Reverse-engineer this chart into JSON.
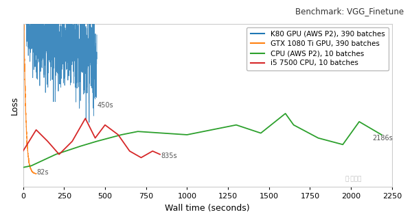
{
  "title": "Benchmark: VGG_Finetune",
  "xlabel": "Wall time (seconds)",
  "ylabel": "Loss",
  "background_color": "#ffffff",
  "legend_entries": [
    "K80 GPU (AWS P2), 390 batches",
    "GTX 1080 Ti GPU, 390 batches",
    "CPU (AWS P2), 10 batches",
    "i5 7500 CPU, 10 batches"
  ],
  "line_colors": {
    "k80": "#1f77b4",
    "gtx": "#ff7f0e",
    "cpu_aws": "#2ca02c",
    "i5": "#d62728"
  },
  "xlim": [
    0,
    2250
  ],
  "ylim": [
    0,
    1.0
  ],
  "annotation_color": "#555555",
  "annotation_fontsize": 7
}
